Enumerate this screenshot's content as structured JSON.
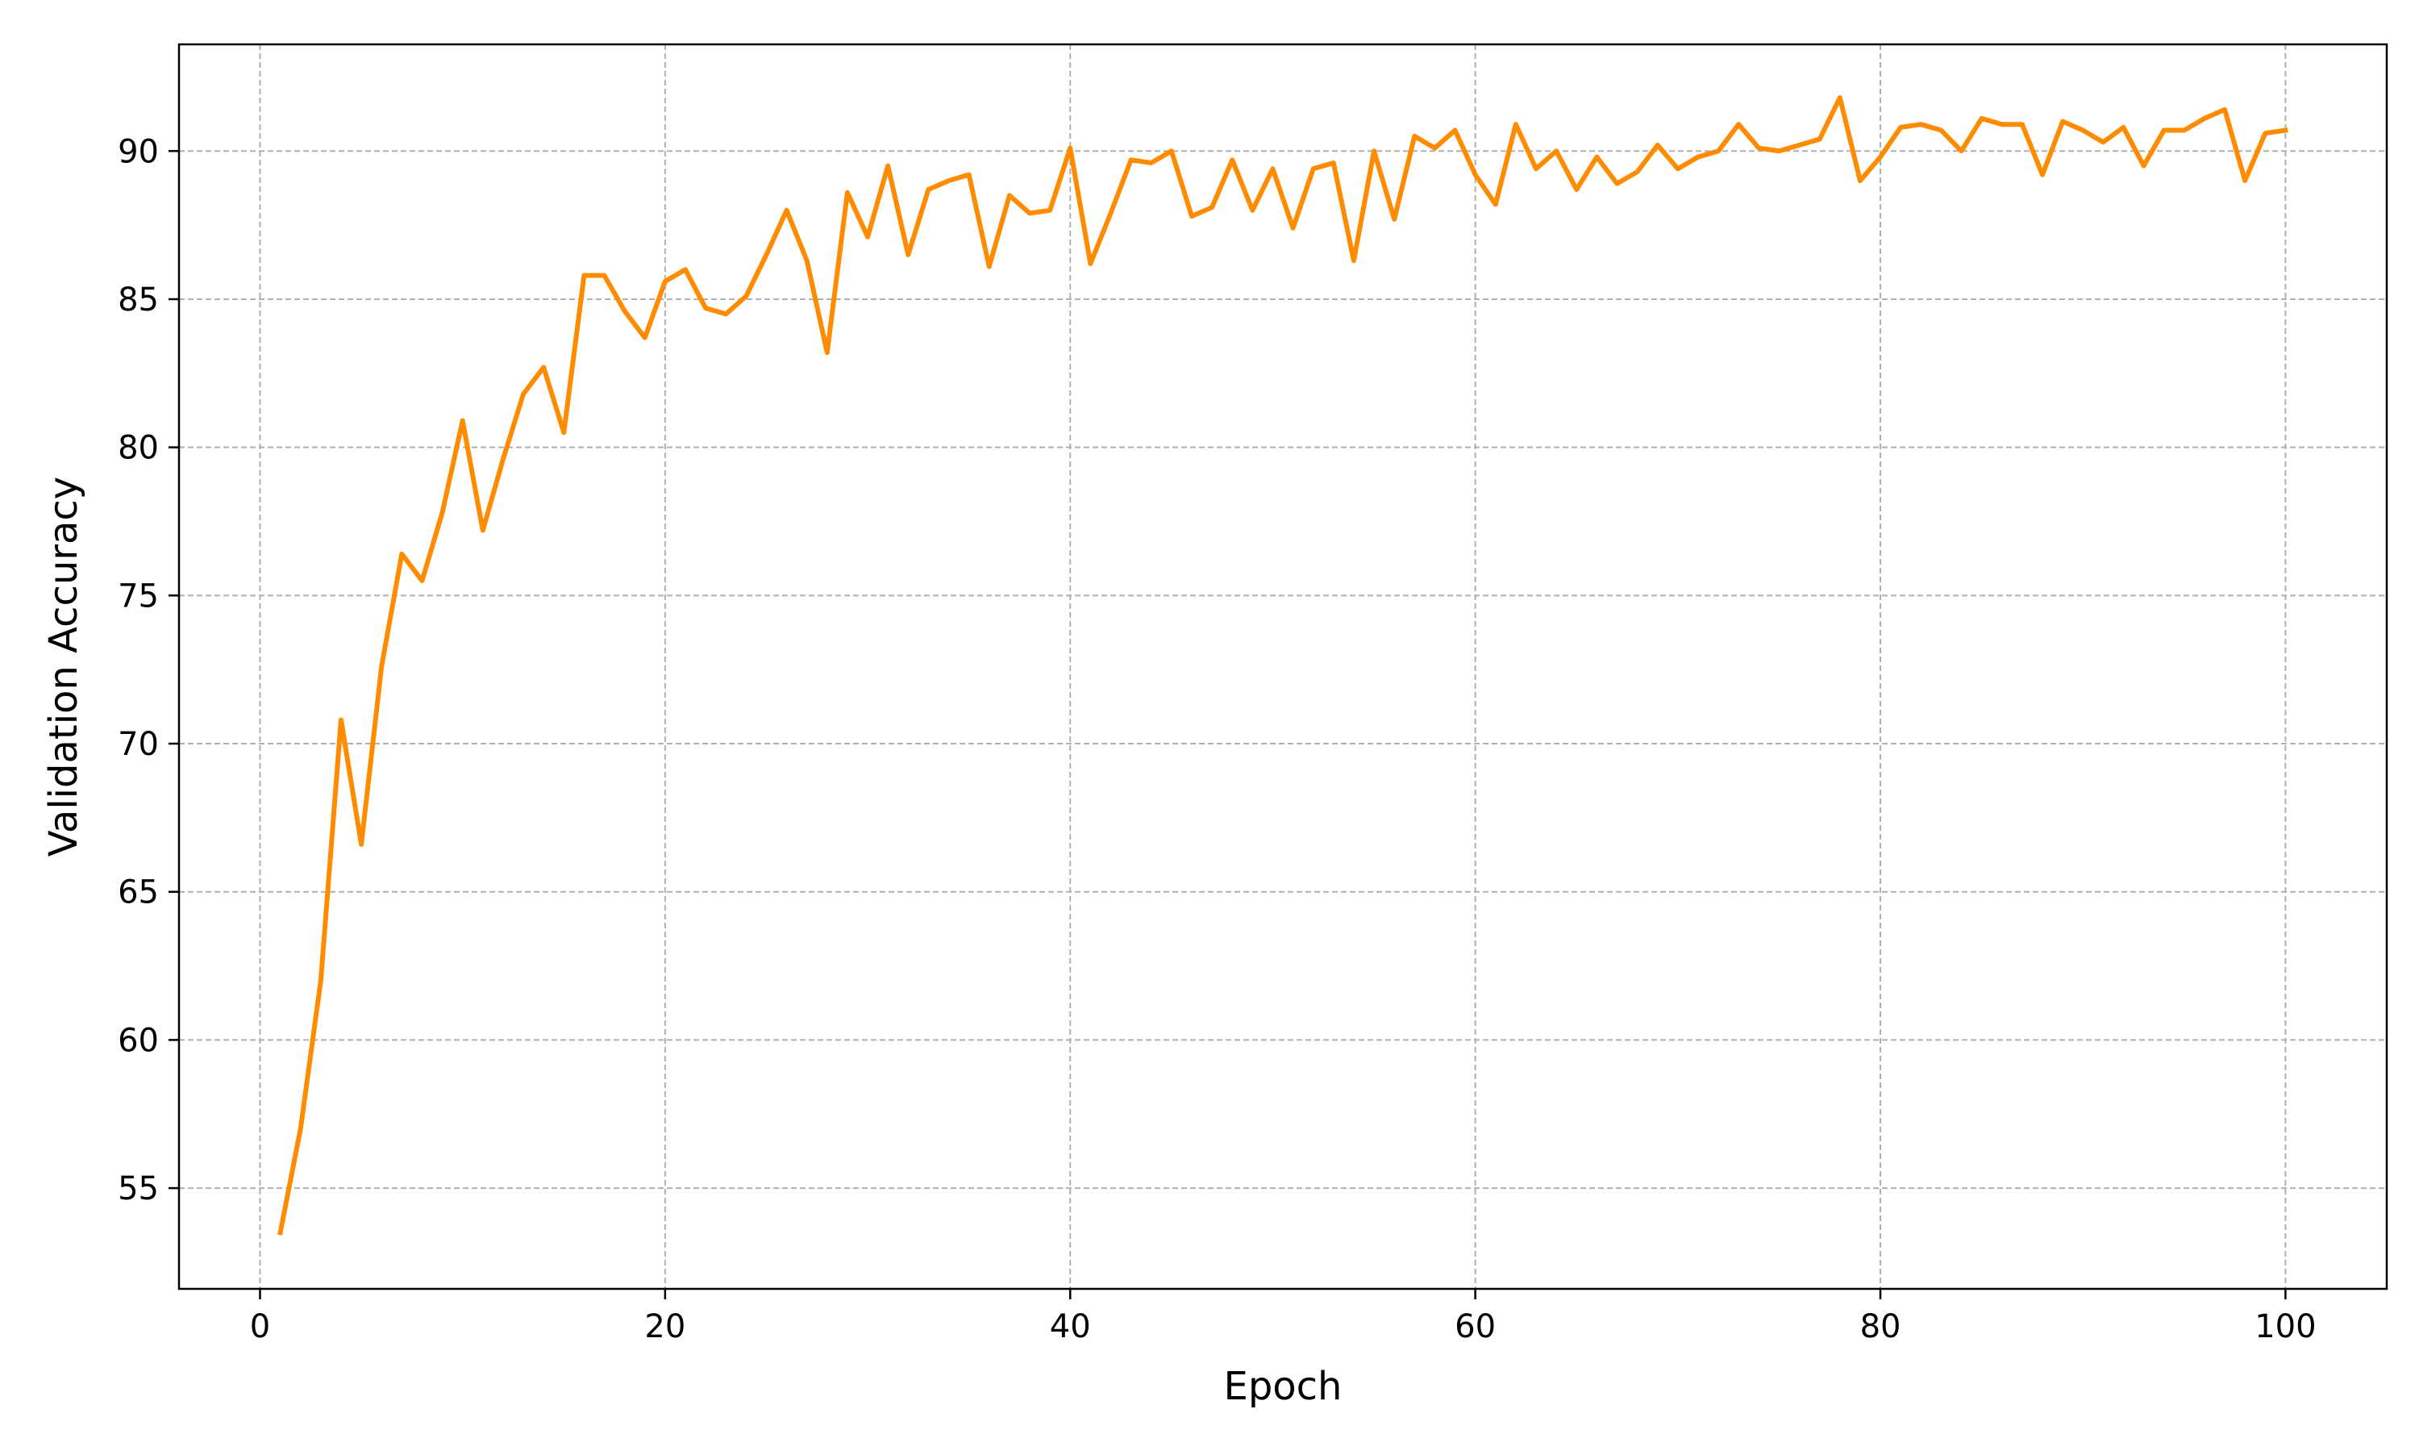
{
  "chart_data": {
    "type": "line",
    "title": "",
    "xlabel": "Epoch",
    "ylabel": "Validation Accuracy",
    "xlim": [
      -4,
      105
    ],
    "ylim": [
      51.6,
      93.6
    ],
    "xticks": [
      0,
      20,
      40,
      60,
      80,
      100
    ],
    "yticks": [
      55,
      60,
      65,
      70,
      75,
      80,
      85,
      90
    ],
    "grid": true,
    "legend": "none",
    "line_color": "#ff8c00",
    "grid_color": "#b0b0b0",
    "x": [
      1,
      2,
      3,
      4,
      5,
      6,
      7,
      8,
      9,
      10,
      11,
      12,
      13,
      14,
      15,
      16,
      17,
      18,
      19,
      20,
      21,
      22,
      23,
      24,
      25,
      26,
      27,
      28,
      29,
      30,
      31,
      32,
      33,
      34,
      35,
      36,
      37,
      38,
      39,
      40,
      41,
      42,
      43,
      44,
      45,
      46,
      47,
      48,
      49,
      50,
      51,
      52,
      53,
      54,
      55,
      56,
      57,
      58,
      59,
      60,
      61,
      62,
      63,
      64,
      65,
      66,
      67,
      68,
      69,
      70,
      71,
      72,
      73,
      74,
      75,
      76,
      77,
      78,
      79,
      80,
      81,
      82,
      83,
      84,
      85,
      86,
      87,
      88,
      89,
      90,
      91,
      92,
      93,
      94,
      95,
      96,
      97,
      98,
      99,
      100
    ],
    "series": [
      {
        "values": [
          53.5,
          57.0,
          62.0,
          70.8,
          66.6,
          72.6,
          76.4,
          75.5,
          77.8,
          80.9,
          77.2,
          79.6,
          81.8,
          82.7,
          80.5,
          85.8,
          85.8,
          84.6,
          83.7,
          85.6,
          86.0,
          84.7,
          84.5,
          85.1,
          86.5,
          88.0,
          86.3,
          83.2,
          88.6,
          87.1,
          89.5,
          86.5,
          88.7,
          89.0,
          89.2,
          86.1,
          88.5,
          87.9,
          88.0,
          90.1,
          86.2,
          87.9,
          89.7,
          89.6,
          90.0,
          87.8,
          88.1,
          89.7,
          88.0,
          89.4,
          87.4,
          89.4,
          89.6,
          86.3,
          90.0,
          87.7,
          90.5,
          90.1,
          90.7,
          89.2,
          88.2,
          90.9,
          89.4,
          90.0,
          88.7,
          89.8,
          88.9,
          89.3,
          90.2,
          89.4,
          89.8,
          90.0,
          90.9,
          90.1,
          90.0,
          90.2,
          90.4,
          91.8,
          89.0,
          89.8,
          90.8,
          90.9,
          90.7,
          90.0,
          91.1,
          90.9,
          90.9,
          89.2,
          91.0,
          90.7,
          90.3,
          90.8,
          89.5,
          90.7,
          90.7,
          91.1,
          91.4,
          89.0,
          90.6,
          90.7
        ]
      }
    ]
  }
}
